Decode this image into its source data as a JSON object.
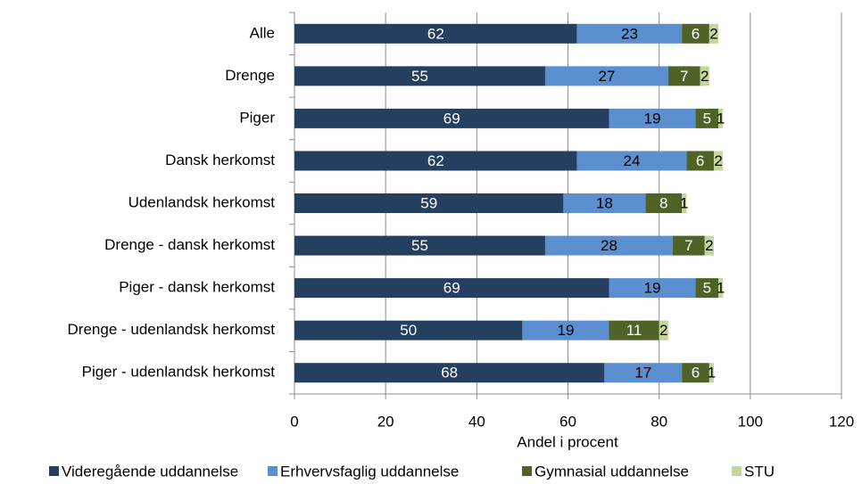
{
  "chart_data": {
    "type": "stacked_bar_horizontal",
    "categories": [
      "Alle",
      "Drenge",
      "Piger",
      "Dansk herkomst",
      "Udenlandsk herkomst",
      "Drenge - dansk herkomst",
      "Piger - dansk herkomst",
      "Drenge - udenlandsk herkomst",
      "Piger - udenlandsk herkomst"
    ],
    "series": [
      {
        "name": "Videregående uddannelse",
        "color": "#243f60",
        "values": [
          62,
          55,
          69,
          62,
          59,
          55,
          69,
          50,
          68
        ]
      },
      {
        "name": "Erhvervsfaglig uddannelse",
        "color": "#5b8fd0",
        "values": [
          23,
          27,
          19,
          24,
          18,
          28,
          19,
          19,
          17
        ]
      },
      {
        "name": "Gymnasial uddannelse",
        "color": "#4f6228",
        "values": [
          6,
          7,
          5,
          6,
          8,
          7,
          5,
          11,
          6
        ]
      },
      {
        "name": "STU",
        "color": "#c3d69b",
        "values": [
          2,
          2,
          1,
          2,
          1,
          2,
          1,
          2,
          1
        ]
      }
    ],
    "xlabel": "Andel i procent",
    "xlim": [
      0,
      120
    ],
    "xticks": [
      0,
      20,
      40,
      60,
      80,
      100,
      120
    ],
    "grid": true,
    "legend": "bottom"
  }
}
